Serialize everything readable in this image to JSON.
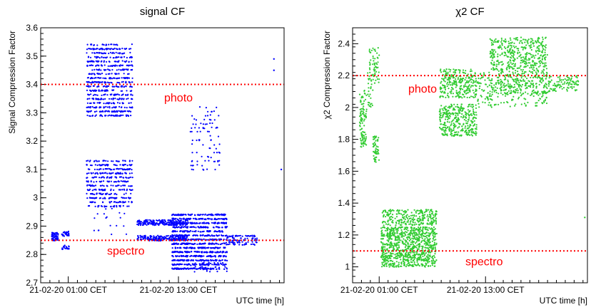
{
  "chart_data": [
    {
      "type": "scatter",
      "title": "signal CF",
      "xlabel": "UTC time [h]",
      "ylabel": "Signal Compression Factor",
      "ylim": [
        2.7,
        3.6
      ],
      "yticks": [
        "2.7",
        "2.8",
        "2.9",
        "3",
        "3.1",
        "3.2",
        "3.3",
        "3.4",
        "3.5",
        "3.6"
      ],
      "xlim": [
        0,
        26.5
      ],
      "xticks": [
        {
          "x": 3,
          "label": "21-02-20 01:00 CET"
        },
        {
          "x": 15,
          "label": "21-02-20 13:00 CET"
        }
      ],
      "grid": false,
      "series": [
        {
          "color": "#0000ff",
          "marker": "dot",
          "clusters": [
            {
              "x": [
                1.2,
                1.9
              ],
              "y": [
                2.85,
                2.875
              ],
              "n": 60
            },
            {
              "x": [
                2.3,
                3.1
              ],
              "y": [
                2.865,
                2.88
              ],
              "n": 30
            },
            {
              "x": [
                2.3,
                3.1
              ],
              "y": [
                2.82,
                2.83
              ],
              "n": 20
            },
            {
              "x": [
                5.0,
                10.0
              ],
              "y": [
                3.29,
                3.54
              ],
              "n": 700
            },
            {
              "x": [
                5.0,
                10.0
              ],
              "y": [
                2.97,
                3.13
              ],
              "n": 420
            },
            {
              "x": [
                5.0,
                10.0
              ],
              "y": [
                2.87,
                2.96
              ],
              "n": 18
            },
            {
              "x": [
                10.5,
                16.0
              ],
              "y": [
                2.905,
                2.92
              ],
              "n": 220
            },
            {
              "x": [
                10.5,
                16.0
              ],
              "y": [
                2.85,
                2.865
              ],
              "n": 200
            },
            {
              "x": [
                14.3,
                16.3
              ],
              "y": [
                2.75,
                2.94
              ],
              "n": 500
            },
            {
              "x": [
                16.3,
                20.3
              ],
              "y": [
                2.75,
                2.94
              ],
              "n": 700
            },
            {
              "x": [
                16.3,
                20.3
              ],
              "y": [
                2.74,
                2.77
              ],
              "n": 40
            },
            {
              "x": [
                16.3,
                19.5
              ],
              "y": [
                3.1,
                3.32
              ],
              "n": 90
            },
            {
              "x": [
                20.2,
                23.6
              ],
              "y": [
                2.835,
                2.865
              ],
              "n": 110
            }
          ],
          "outliers": [
            {
              "x": 25.4,
              "y": 3.49
            },
            {
              "x": 25.4,
              "y": 3.45
            },
            {
              "x": 26.2,
              "y": 3.1
            }
          ]
        }
      ],
      "reference_lines": [
        {
          "y": 3.4,
          "label": "photo",
          "color": "#ff0000",
          "style": "dotted"
        },
        {
          "y": 2.85,
          "label": "spectro",
          "color": "#ff0000",
          "style": "dotted"
        }
      ]
    },
    {
      "type": "scatter",
      "title": "χ2 CF",
      "xlabel": "UTC time [h]",
      "ylabel": "χ2 Compression Factor",
      "ylim": [
        0.9,
        2.5
      ],
      "yticks": [
        "1",
        "1.2",
        "1.4",
        "1.6",
        "1.8",
        "2",
        "2.2",
        "2.4"
      ],
      "xlim": [
        0,
        26.5
      ],
      "xticks": [
        {
          "x": 3,
          "label": "21-02-20 01:00 CET"
        },
        {
          "x": 15,
          "label": "21-02-20 13:00 CET"
        }
      ],
      "grid": false,
      "series": [
        {
          "color": "#33cc33",
          "marker": "dot",
          "clusters": [
            {
              "x": [
                0.8,
                1.6
              ],
              "y": [
                1.75,
                1.95
              ],
              "n": 70
            },
            {
              "x": [
                0.8,
                1.6
              ],
              "y": [
                1.95,
                2.12
              ],
              "n": 40
            },
            {
              "x": [
                1.7,
                2.3
              ],
              "y": [
                2.0,
                2.4
              ],
              "n": 45
            },
            {
              "x": [
                2.3,
                3.0
              ],
              "y": [
                1.65,
                1.82
              ],
              "n": 55
            },
            {
              "x": [
                2.3,
                3.0
              ],
              "y": [
                2.15,
                2.38
              ],
              "n": 40
            },
            {
              "x": [
                3.2,
                9.5
              ],
              "y": [
                1.0,
                1.25
              ],
              "n": 900
            },
            {
              "x": [
                3.2,
                9.5
              ],
              "y": [
                1.26,
                1.36
              ],
              "n": 260
            },
            {
              "x": [
                9.8,
                14.0
              ],
              "y": [
                1.82,
                2.02
              ],
              "n": 350
            },
            {
              "x": [
                9.8,
                14.0
              ],
              "y": [
                2.06,
                2.24
              ],
              "n": 280
            },
            {
              "x": [
                14.0,
                15.6
              ],
              "y": [
                2.0,
                2.22
              ],
              "n": 60
            },
            {
              "x": [
                15.5,
                22.0
              ],
              "y": [
                2.08,
                2.44
              ],
              "n": 700
            },
            {
              "x": [
                15.5,
                22.0
              ],
              "y": [
                2.0,
                2.1
              ],
              "n": 70
            },
            {
              "x": [
                22.0,
                25.5
              ],
              "y": [
                2.1,
                2.2
              ],
              "n": 100
            }
          ],
          "outliers": [
            {
              "x": 26.2,
              "y": 1.31
            },
            {
              "x": 10.6,
              "y": 2.24
            }
          ]
        }
      ],
      "reference_lines": [
        {
          "y": 2.2,
          "label": "photo",
          "color": "#ff0000",
          "style": "dotted"
        },
        {
          "y": 1.1,
          "label": "spectro",
          "color": "#ff0000",
          "style": "dotted"
        }
      ]
    }
  ]
}
